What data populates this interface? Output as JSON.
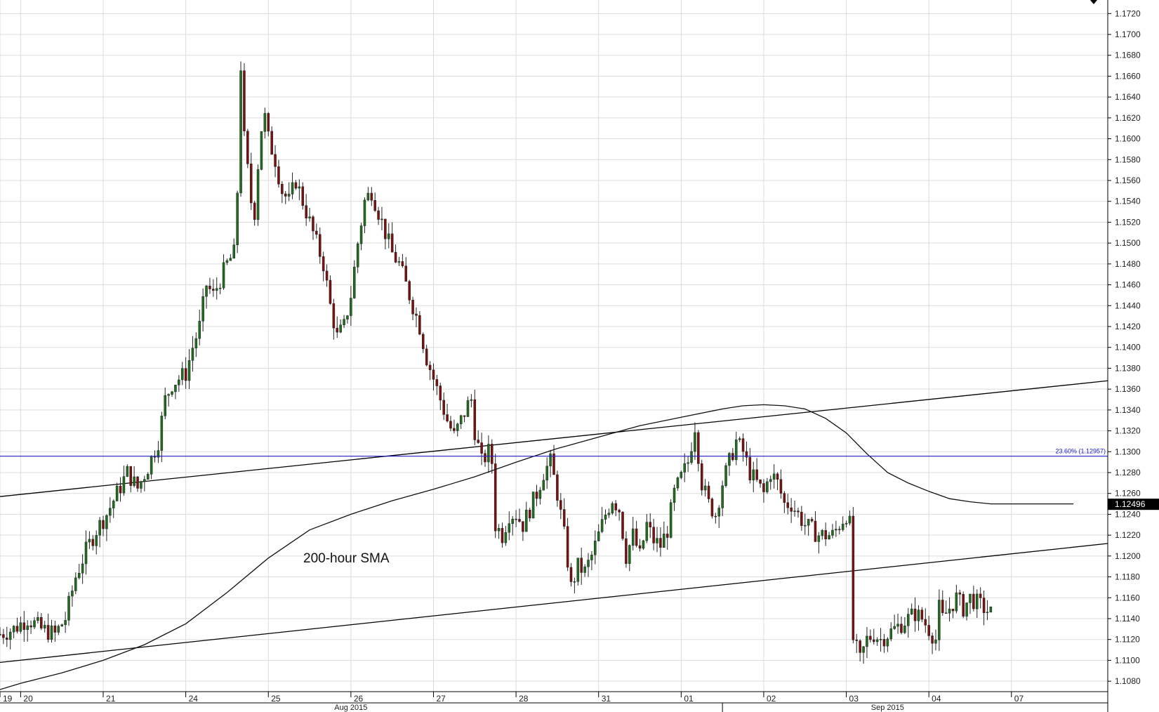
{
  "chart_data": {
    "type": "candlestick",
    "instrument_interval": "hourly",
    "ylim": [
      1.107,
      1.1733
    ],
    "y_ticks": [
      "1.1720",
      "1.1700",
      "1.1680",
      "1.1660",
      "1.1640",
      "1.1620",
      "1.1600",
      "1.1580",
      "1.1560",
      "1.1540",
      "1.1520",
      "1.1500",
      "1.1480",
      "1.1460",
      "1.1440",
      "1.1420",
      "1.1400",
      "1.1380",
      "1.1360",
      "1.1340",
      "1.1320",
      "1.1300",
      "1.1280",
      "1.1260",
      "1.1240",
      "1.1220",
      "1.1200",
      "1.1180",
      "1.1160",
      "1.1140",
      "1.1120",
      "1.1100",
      "1.1080"
    ],
    "x_day_labels": [
      {
        "label": "19",
        "hour": -6
      },
      {
        "label": "20",
        "hour": 0
      },
      {
        "label": "21",
        "hour": 24
      },
      {
        "label": "24",
        "hour": 48
      },
      {
        "label": "25",
        "hour": 72
      },
      {
        "label": "26",
        "hour": 96
      },
      {
        "label": "27",
        "hour": 120
      },
      {
        "label": "28",
        "hour": 144
      },
      {
        "label": "31",
        "hour": 168
      },
      {
        "label": "01",
        "hour": 192
      },
      {
        "label": "02",
        "hour": 216
      },
      {
        "label": "03",
        "hour": 240
      },
      {
        "label": "04",
        "hour": 264
      },
      {
        "label": "07",
        "hour": 288
      }
    ],
    "x_month_labels": [
      {
        "label": "Aug 2015",
        "hour": 96
      },
      {
        "label": "Sep 2015",
        "hour": 252
      }
    ],
    "hour_range": [
      -6,
      316
    ],
    "close_path": [
      [
        -6,
        1.1125
      ],
      [
        -2,
        1.113
      ],
      [
        2,
        1.114
      ],
      [
        6,
        1.113
      ],
      [
        10,
        1.1125
      ],
      [
        13,
        1.114
      ],
      [
        16,
        1.118
      ],
      [
        19,
        1.1205
      ],
      [
        22,
        1.1225
      ],
      [
        25,
        1.124
      ],
      [
        28,
        1.126
      ],
      [
        31,
        1.128
      ],
      [
        34,
        1.1265
      ],
      [
        37,
        1.1285
      ],
      [
        40,
        1.131
      ],
      [
        42,
        1.135
      ],
      [
        44,
        1.1365
      ],
      [
        46,
        1.137
      ],
      [
        48,
        1.1375
      ],
      [
        50,
        1.14
      ],
      [
        52,
        1.142
      ],
      [
        54,
        1.146
      ],
      [
        56,
        1.145
      ],
      [
        58,
        1.1465
      ],
      [
        60,
        1.148
      ],
      [
        62,
        1.149
      ],
      [
        63,
        1.155
      ],
      [
        64,
        1.167
      ],
      [
        65,
        1.16
      ],
      [
        66,
        1.157
      ],
      [
        67,
        1.154
      ],
      [
        68,
        1.153
      ],
      [
        69,
        1.1575
      ],
      [
        70,
        1.161
      ],
      [
        71,
        1.162
      ],
      [
        72,
        1.16
      ],
      [
        74,
        1.158
      ],
      [
        76,
        1.155
      ],
      [
        78,
        1.154
      ],
      [
        80,
        1.156
      ],
      [
        82,
        1.154
      ],
      [
        84,
        1.152
      ],
      [
        86,
        1.15
      ],
      [
        88,
        1.148
      ],
      [
        90,
        1.144
      ],
      [
        92,
        1.141
      ],
      [
        94,
        1.142
      ],
      [
        96,
        1.145
      ],
      [
        98,
        1.15
      ],
      [
        100,
        1.154
      ],
      [
        102,
        1.155
      ],
      [
        104,
        1.153
      ],
      [
        106,
        1.151
      ],
      [
        108,
        1.149
      ],
      [
        110,
        1.148
      ],
      [
        112,
        1.146
      ],
      [
        114,
        1.144
      ],
      [
        116,
        1.142
      ],
      [
        118,
        1.139
      ],
      [
        120,
        1.137
      ],
      [
        122,
        1.135
      ],
      [
        124,
        1.133
      ],
      [
        126,
        1.1315
      ],
      [
        128,
        1.133
      ],
      [
        130,
        1.1345
      ],
      [
        131,
        1.135
      ],
      [
        132,
        1.132
      ],
      [
        134,
        1.129
      ],
      [
        136,
        1.13
      ],
      [
        137,
        1.129
      ],
      [
        138,
        1.123
      ],
      [
        140,
        1.122
      ],
      [
        142,
        1.124
      ],
      [
        144,
        1.124
      ],
      [
        146,
        1.123
      ],
      [
        148,
        1.1245
      ],
      [
        150,
        1.126
      ],
      [
        152,
        1.128
      ],
      [
        154,
        1.129
      ],
      [
        156,
        1.126
      ],
      [
        158,
        1.122
      ],
      [
        160,
        1.117
      ],
      [
        162,
        1.119
      ],
      [
        164,
        1.1185
      ],
      [
        166,
        1.12
      ],
      [
        168,
        1.122
      ],
      [
        170,
        1.124
      ],
      [
        172,
        1.1255
      ],
      [
        174,
        1.1245
      ],
      [
        176,
        1.12
      ],
      [
        178,
        1.122
      ],
      [
        180,
        1.12
      ],
      [
        182,
        1.123
      ],
      [
        184,
        1.1215
      ],
      [
        186,
        1.121
      ],
      [
        188,
        1.1225
      ],
      [
        190,
        1.126
      ],
      [
        192,
        1.1275
      ],
      [
        194,
        1.129
      ],
      [
        196,
        1.1325
      ],
      [
        198,
        1.127
      ],
      [
        200,
        1.125
      ],
      [
        202,
        1.124
      ],
      [
        204,
        1.127
      ],
      [
        206,
        1.129
      ],
      [
        208,
        1.131
      ],
      [
        210,
        1.13
      ],
      [
        212,
        1.128
      ],
      [
        214,
        1.127
      ],
      [
        216,
        1.126
      ],
      [
        218,
        1.128
      ],
      [
        220,
        1.127
      ],
      [
        222,
        1.125
      ],
      [
        224,
        1.125
      ],
      [
        226,
        1.124
      ],
      [
        228,
        1.123
      ],
      [
        230,
        1.1225
      ],
      [
        232,
        1.122
      ],
      [
        234,
        1.122
      ],
      [
        236,
        1.122
      ],
      [
        238,
        1.123
      ],
      [
        240,
        1.124
      ],
      [
        241,
        1.123
      ],
      [
        242,
        1.112
      ],
      [
        244,
        1.11
      ],
      [
        246,
        1.112
      ],
      [
        248,
        1.1125
      ],
      [
        250,
        1.112
      ],
      [
        252,
        1.1125
      ],
      [
        254,
        1.113
      ],
      [
        256,
        1.1135
      ],
      [
        258,
        1.114
      ],
      [
        260,
        1.1145
      ],
      [
        262,
        1.114
      ],
      [
        264,
        1.113
      ],
      [
        266,
        1.112
      ],
      [
        267,
        1.115
      ],
      [
        268,
        1.114
      ],
      [
        270,
        1.115
      ],
      [
        272,
        1.116
      ],
      [
        274,
        1.115
      ],
      [
        276,
        1.116
      ],
      [
        278,
        1.1155
      ],
      [
        280,
        1.115
      ],
      [
        282,
        1.1145
      ]
    ],
    "sma_200_hour": [
      [
        -6,
        1.1072
      ],
      [
        0,
        1.1078
      ],
      [
        12,
        1.1088
      ],
      [
        24,
        1.11
      ],
      [
        36,
        1.1115
      ],
      [
        48,
        1.1135
      ],
      [
        60,
        1.1165
      ],
      [
        72,
        1.1198
      ],
      [
        84,
        1.1225
      ],
      [
        96,
        1.124
      ],
      [
        108,
        1.1253
      ],
      [
        120,
        1.1264
      ],
      [
        132,
        1.1276
      ],
      [
        144,
        1.129
      ],
      [
        156,
        1.1303
      ],
      [
        168,
        1.1314
      ],
      [
        180,
        1.1325
      ],
      [
        192,
        1.1333
      ],
      [
        204,
        1.1341
      ],
      [
        210,
        1.1344
      ],
      [
        216,
        1.1345
      ],
      [
        222,
        1.1344
      ],
      [
        228,
        1.1341
      ],
      [
        234,
        1.1332
      ],
      [
        240,
        1.1318
      ],
      [
        246,
        1.1298
      ],
      [
        252,
        1.128
      ],
      [
        258,
        1.127
      ],
      [
        264,
        1.1262
      ],
      [
        270,
        1.1255
      ],
      [
        276,
        1.1252
      ],
      [
        282,
        1.125
      ],
      [
        306,
        1.125
      ]
    ],
    "trendlines": [
      {
        "from": [
          -6,
          1.1257
        ],
        "to": [
          316,
          1.1368
        ]
      },
      {
        "from": [
          -6,
          1.1098
        ],
        "to": [
          316,
          1.1212
        ]
      }
    ],
    "fib_level": {
      "value": 1.12957,
      "label": "23.60% (1.12957)",
      "color": "#1a1acc"
    },
    "current_price": "1.12496",
    "annotation": "200-hour SMA",
    "colors": {
      "up": "#1e6e1e",
      "down": "#7a1010",
      "grid": "#dcdcdc",
      "axis": "#000000",
      "fib": "#1a1acc"
    }
  }
}
